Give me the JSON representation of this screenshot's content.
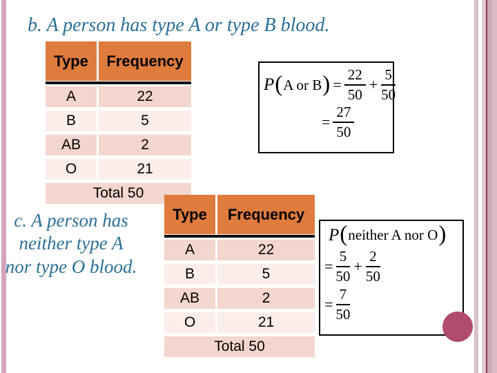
{
  "slide": {
    "title": "b. A person has type A or type B blood.",
    "caption": {
      "line1": "c. A person has",
      "line2": "neither type A",
      "line3": "nor type O blood."
    }
  },
  "table1": {
    "header": {
      "type": "Type",
      "frequency": "Frequency"
    },
    "rows": [
      {
        "type": "A",
        "frequency": "22"
      },
      {
        "type": "B",
        "frequency": "5"
      },
      {
        "type": "AB",
        "frequency": "2"
      },
      {
        "type": "O",
        "frequency": "21"
      }
    ],
    "total_label": "Total 50"
  },
  "table2": {
    "header": {
      "type": "Type",
      "frequency": "Frequency"
    },
    "rows": [
      {
        "type": "A",
        "frequency": "22"
      },
      {
        "type": "B",
        "frequency": "5"
      },
      {
        "type": "AB",
        "frequency": "2"
      },
      {
        "type": "O",
        "frequency": "21"
      }
    ],
    "total_label": "Total 50"
  },
  "formula1": {
    "func": "P",
    "open_paren": "(",
    "argument": "A or B",
    "close_paren": ")",
    "equals": "=",
    "plus": "+",
    "frac_a": {
      "num": "22",
      "den": "50"
    },
    "frac_b": {
      "num": "5",
      "den": "50"
    },
    "result": {
      "num": "27",
      "den": "50"
    }
  },
  "formula2": {
    "func": "P",
    "open_paren": "(",
    "argument": "neither A nor O",
    "close_paren": ")",
    "equals": "=",
    "plus": "+",
    "frac_a": {
      "num": "5",
      "den": "50"
    },
    "frac_b": {
      "num": "2",
      "den": "50"
    },
    "result": {
      "num": "7",
      "den": "50"
    }
  },
  "colors": {
    "title_teal": "#2B6F96",
    "header_orange": "#DF7B3D",
    "row_pink": "#F3D6CD",
    "row_pale": "#FBEEEA",
    "left_stripe_pink": "#D4A4BB",
    "right_stripe_light": "#DCC0CC",
    "right_stripe_pale": "#E2C8D4",
    "right_stripe_dark_line": "#8A3A57",
    "right_stripe_medium": "#CFA5B8",
    "right_stripe_outer": "#DBBAC8",
    "accent_circle": "#B04C6F"
  }
}
